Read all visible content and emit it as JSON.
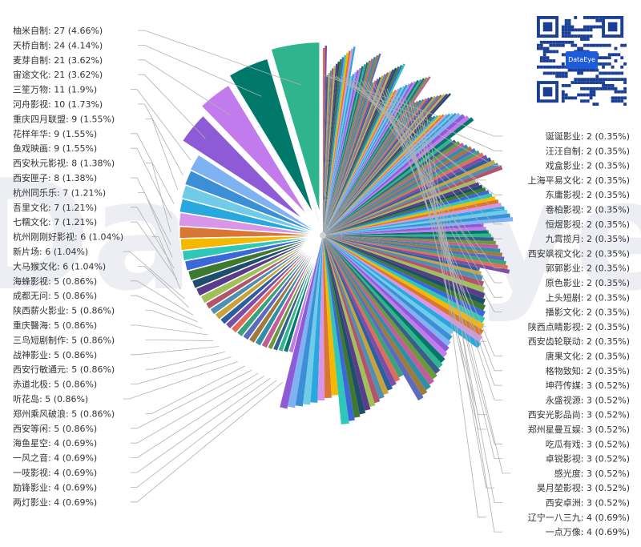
{
  "watermark": "DataEye",
  "qr_badge": "DataEye",
  "colors": {
    "label": "#333333",
    "leader": "#a0a0a0",
    "watermark": "#dfe3ea",
    "center": "#d0d0d0"
  },
  "chart_data": {
    "type": "pie",
    "total": 580,
    "labels_shown_left": [
      "柚米自制: 27 (4.66%)",
      "天桥自制: 24 (4.14%)",
      "麦芽自制: 21 (3.62%)",
      "宙途文化: 21 (3.62%)",
      "三笙万物: 11 (1.9%)",
      "河舟影视: 10 (1.73%)",
      "重庆四月联盟: 9 (1.55%)",
      "花样年华: 9 (1.55%)",
      "鱼戏映画: 9 (1.55%)",
      "西安秋元影视: 8 (1.38%)",
      "西安匣子: 8 (1.38%)",
      "杭州同乐乐: 7 (1.21%)",
      "吾里文化: 7 (1.21%)",
      "七糯文化: 7 (1.21%)",
      "杭州刚刚好影视: 6 (1.04%)",
      "新片场: 6 (1.04%)",
      "大马猴文化: 6 (1.04%)",
      "海蜂影视: 5 (0.86%)",
      "成都无问: 5 (0.86%)",
      "陕西薪火影业: 5 (0.86%)",
      "重庆醫海: 5 (0.86%)",
      "三鸟短剧制作: 5 (0.86%)",
      "战神影业: 5 (0.86%)",
      "西安行敏通元: 5 (0.86%)",
      "赤道北极: 5 (0.86%)",
      "听花岛: 5 (0.86%)",
      "郑州乘风破浪: 5 (0.86%)",
      "西安等闲: 5 (0.86%)",
      "海鱼星空: 4 (0.69%)",
      "一风之音: 4 (0.69%)",
      "一吱影视: 4 (0.69%)",
      "励锋影业: 4 (0.69%)",
      "两灯影业: 4 (0.69%)"
    ],
    "labels_shown_right": [
      "诞诞影业: 2 (0.35%)",
      "汪汪自制: 2 (0.35%)",
      "戏盒影业: 2 (0.35%)",
      "上海平易文化: 2 (0.35%)",
      "东庸影视: 2 (0.35%)",
      "卷柏影视: 2 (0.35%)",
      "恒煜影视: 2 (0.35%)",
      "九霄揽月: 2 (0.35%)",
      "西安飒视文化: 2 (0.35%)",
      "郭郭影业: 2 (0.35%)",
      "原色影业: 2 (0.35%)",
      "上头短剧: 2 (0.35%)",
      "播影文化: 2 (0.35%)",
      "陕西点睛影视: 2 (0.35%)",
      "西安齿轮联动: 2 (0.35%)",
      "唐果文化: 2 (0.35%)",
      "格物致知: 2 (0.35%)",
      "坤荇传媒: 3 (0.52%)",
      "永盛视源: 3 (0.52%)",
      "西安光影品尚: 3 (0.52%)",
      "郑州星曼互娱: 3 (0.52%)",
      "吃瓜有戏: 3 (0.52%)",
      "卓锐影视: 3 (0.52%)",
      "感光度: 3 (0.52%)",
      "昊月堃影视: 3 (0.52%)",
      "西安卓洲: 3 (0.52%)",
      "辽宁一八三九: 4 (0.69%)",
      "一点万像: 4 (0.69%)"
    ],
    "slices_left_values": [
      27,
      24,
      21,
      21,
      11,
      10,
      9,
      9,
      9,
      8,
      8,
      7,
      7,
      7,
      6,
      6,
      6,
      5,
      5,
      5,
      5,
      5,
      5,
      5,
      5,
      5,
      5,
      5,
      4,
      4,
      4,
      4,
      4
    ],
    "slices_right_values": [
      4,
      4,
      4,
      4,
      4,
      4,
      4,
      4,
      4,
      3,
      3,
      3,
      3,
      3,
      3,
      3,
      3,
      3,
      3,
      3,
      3,
      3,
      3,
      3,
      3,
      3,
      3,
      3,
      3,
      3,
      3,
      3,
      3,
      3,
      3,
      3,
      3,
      3,
      3,
      3,
      3,
      3,
      3,
      3,
      3,
      3,
      2,
      2,
      2,
      2,
      2,
      2,
      2,
      2,
      2,
      2,
      2,
      2,
      2,
      2,
      2,
      2,
      2,
      2,
      2,
      2,
      2,
      2,
      2,
      2,
      2,
      2,
      2,
      2,
      2,
      2,
      2,
      2,
      2,
      2,
      2,
      2,
      2,
      2,
      2,
      2,
      2,
      2,
      2,
      2,
      2,
      2,
      1,
      1,
      1,
      1,
      1,
      1,
      1,
      1,
      1,
      1,
      1,
      1,
      1,
      1,
      1,
      1,
      1,
      1,
      1,
      1,
      1,
      1,
      1,
      1,
      1,
      1,
      1,
      1,
      1,
      1,
      1,
      1,
      1,
      1,
      1,
      1,
      1,
      1,
      1,
      1,
      1,
      1,
      1,
      1,
      1,
      1,
      1,
      1,
      1,
      1,
      1,
      1,
      1,
      1,
      1,
      1,
      1,
      1,
      1,
      1,
      1,
      1,
      1,
      1,
      1,
      1,
      1,
      1,
      1,
      1,
      1,
      1,
      1,
      1,
      1,
      1,
      1,
      1
    ],
    "palette": [
      "#2fb48e",
      "#00796b",
      "#c27bec",
      "#8e5bd6",
      "#7fb2f2",
      "#3a8fd6",
      "#6fcbe8",
      "#29a8e0",
      "#d995e8",
      "#d97633",
      "#f5b800",
      "#2ec7b8",
      "#3b67d9",
      "#3d7a2f",
      "#1e4e6b",
      "#5a3c8a",
      "#a0c05a",
      "#b2556c",
      "#4e8fb2",
      "#c9a23a",
      "#2b5f9e",
      "#7d4ea8",
      "#e06c5a",
      "#3aa37b",
      "#5c6bc0",
      "#9e7b3c",
      "#2f8fa8",
      "#c25d9a",
      "#6a9a3a",
      "#385f8c"
    ],
    "legend": "none"
  }
}
